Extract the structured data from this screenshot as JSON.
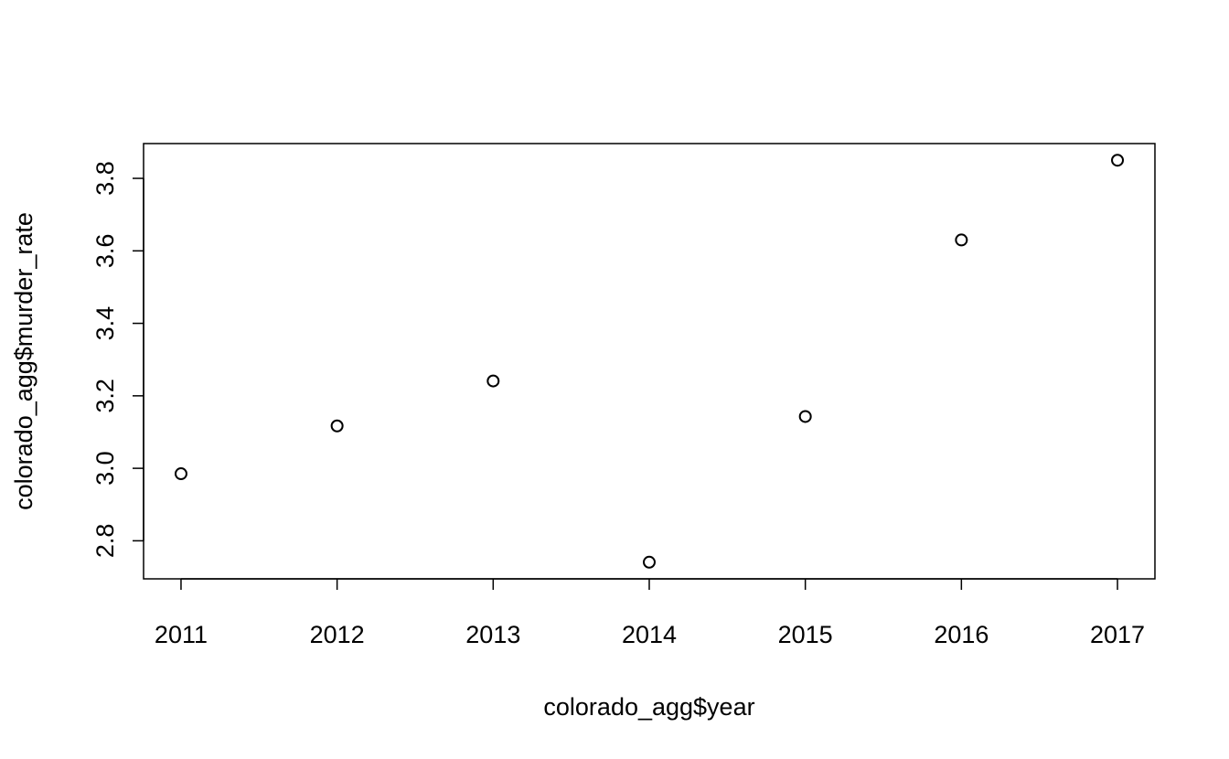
{
  "chart_data": {
    "type": "scatter",
    "title": "",
    "xlabel": "colorado_agg$year",
    "ylabel": "colorado_agg$murder_rate",
    "x": [
      2011,
      2012,
      2013,
      2014,
      2015,
      2016,
      2017
    ],
    "y": [
      2.985,
      3.117,
      3.241,
      2.741,
      3.143,
      3.63,
      3.85
    ],
    "xlim": [
      2010.76,
      2017.24
    ],
    "ylim": [
      2.695,
      3.896
    ],
    "xticks": [
      2011,
      2012,
      2013,
      2014,
      2015,
      2016,
      2017
    ],
    "yticks": [
      2.8,
      3.0,
      3.2,
      3.4,
      3.6,
      3.8
    ],
    "ytick_labels": [
      "2.8",
      "3.0",
      "3.2",
      "3.4",
      "3.6",
      "3.8"
    ],
    "grid": false,
    "legend": null,
    "marker": "open-circle",
    "color": "#000000"
  }
}
